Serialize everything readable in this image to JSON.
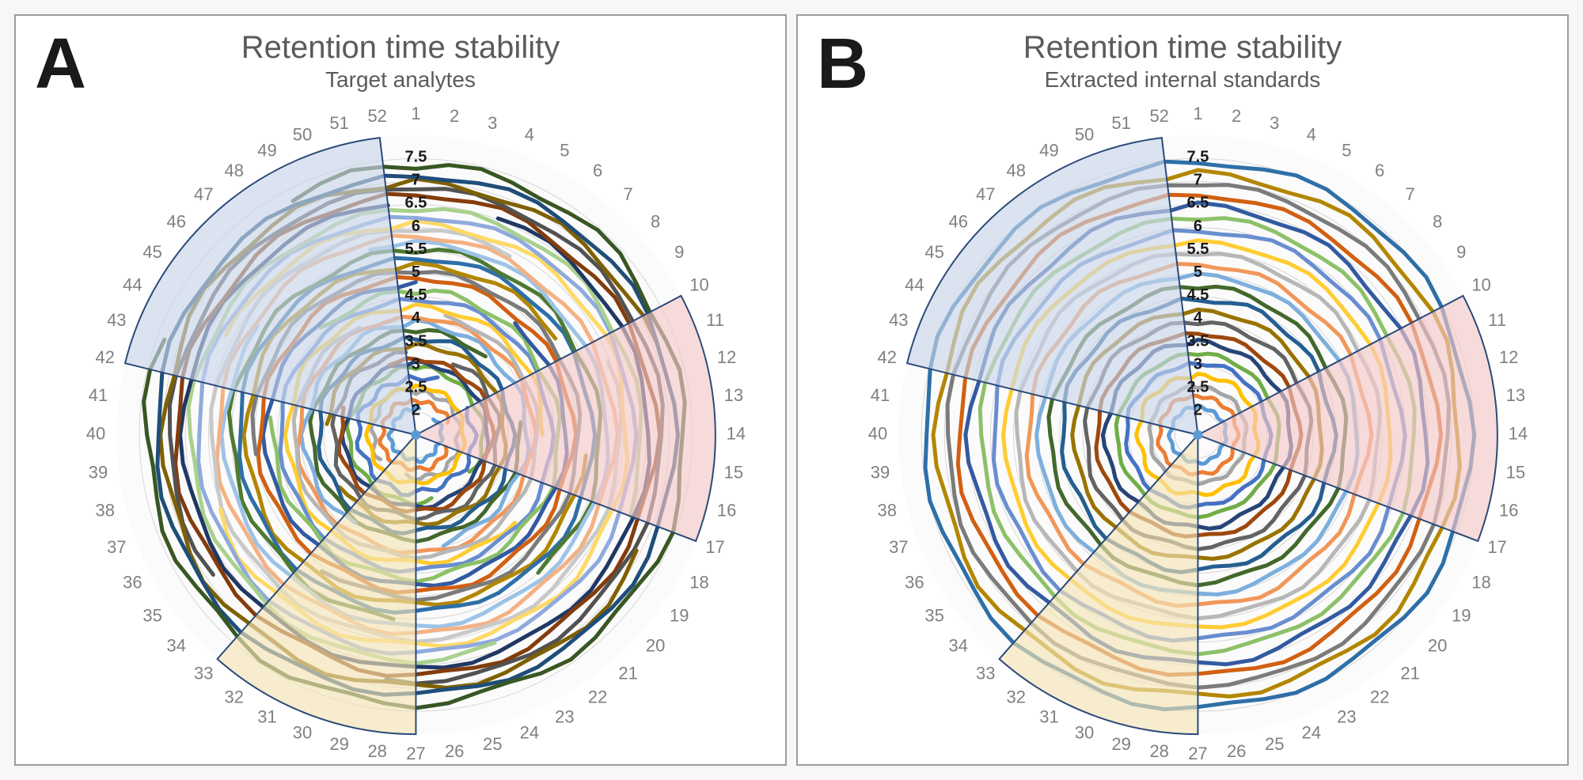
{
  "panelA": {
    "letter": "A",
    "title": "Retention time stability",
    "subtitle": "Target analytes"
  },
  "panelB": {
    "letter": "B",
    "title": "Retention time stability",
    "subtitle": "Extracted internal standards"
  },
  "chart": {
    "type": "polar-line",
    "angular_categories_n": 52,
    "angular_labels": [
      "1",
      "2",
      "3",
      "4",
      "5",
      "6",
      "7",
      "8",
      "9",
      "10",
      "11",
      "12",
      "13",
      "14",
      "15",
      "16",
      "17",
      "18",
      "19",
      "20",
      "21",
      "22",
      "23",
      "24",
      "25",
      "26",
      "27",
      "28",
      "29",
      "30",
      "31",
      "32",
      "33",
      "34",
      "35",
      "36",
      "37",
      "38",
      "39",
      "40",
      "41",
      "42",
      "43",
      "44",
      "45",
      "46",
      "47",
      "48",
      "49",
      "50",
      "51",
      "52"
    ],
    "angular_label_color": "#808080",
    "angular_label_fontsize": 22,
    "radial_ticks": [
      2,
      2.5,
      3,
      3.5,
      4,
      4.5,
      5,
      5.5,
      6,
      6.5,
      7,
      7.5
    ],
    "radial_tick_labels": [
      "2",
      "2.5",
      "3",
      "3.5",
      "4",
      "4.5",
      "5",
      "5.5",
      "6",
      "6.5",
      "7",
      "7.5"
    ],
    "radial_label_color": "#1a1a1a",
    "radial_label_fontsize": 20,
    "radial_label_fontweight": 700,
    "radial_min": 1.5,
    "radial_max": 8.0,
    "gridline_color": "#d6d6d6",
    "gridline_width": 1,
    "background_color": "#fbfbfb",
    "series_line_width": 5,
    "series_colors": [
      "#5b9bd5",
      "#ed7d31",
      "#a5a5a5",
      "#ffc000",
      "#4472c4",
      "#70ad47",
      "#264478",
      "#9e480e",
      "#636363",
      "#997300",
      "#255e91",
      "#43682b",
      "#7cafdd",
      "#f1975a",
      "#b7b7b7",
      "#ffcd33",
      "#698ed0",
      "#8cc168",
      "#335aa1",
      "#d26012",
      "#7b7b7b",
      "#b38600",
      "#2e6fa7",
      "#4e7932",
      "#9dc3e6",
      "#f4b183",
      "#c9c9c9",
      "#ffd966",
      "#8faadc",
      "#a9d18e",
      "#203864",
      "#833c0c",
      "#525252",
      "#7f6000",
      "#1f4e79",
      "#385723"
    ],
    "wedges": [
      {
        "from_cat": 10,
        "to_cat": 17,
        "fill": "#f4c7c7",
        "fill_opacity": 0.65,
        "stroke": "#2b4a7a",
        "r": 8.0
      },
      {
        "from_cat": 27,
        "to_cat": 33,
        "fill": "#f5e4b5",
        "fill_opacity": 0.65,
        "stroke": "#2b4a7a",
        "r": 8.0
      },
      {
        "from_cat": 42,
        "to_cat": 52,
        "fill": "#c9d6ea",
        "fill_opacity": 0.65,
        "stroke": "#2b4a7a",
        "r": 8.0
      }
    ],
    "A_series": [
      {
        "base": 2.05,
        "amp": 0.04,
        "gaps": [
          [
            3,
            7
          ]
        ]
      },
      {
        "base": 2.25,
        "amp": 0.05,
        "gaps": [
          [
            12,
            16
          ]
        ]
      },
      {
        "base": 2.45,
        "amp": 0.06,
        "gaps": [
          [
            30,
            34
          ],
          [
            48,
            51
          ]
        ]
      },
      {
        "base": 2.55,
        "amp": 0.04,
        "gaps": []
      },
      {
        "base": 2.75,
        "amp": 0.07,
        "gaps": [
          [
            5,
            9
          ]
        ]
      },
      {
        "base": 2.95,
        "amp": 0.05,
        "gaps": [
          [
            20,
            24
          ]
        ]
      },
      {
        "base": 3.05,
        "amp": 0.04,
        "gaps": []
      },
      {
        "base": 3.15,
        "amp": 0.05,
        "gaps": [
          [
            44,
            49
          ]
        ]
      },
      {
        "base": 3.3,
        "amp": 0.06,
        "gaps": [
          [
            1,
            4
          ]
        ]
      },
      {
        "base": 3.45,
        "amp": 0.05,
        "gaps": [
          [
            36,
            40
          ]
        ]
      },
      {
        "base": 3.6,
        "amp": 0.06,
        "gaps": []
      },
      {
        "base": 3.75,
        "amp": 0.05,
        "gaps": [
          [
            8,
            12
          ]
        ]
      },
      {
        "base": 3.9,
        "amp": 0.07,
        "gaps": [
          [
            26,
            31
          ]
        ]
      },
      {
        "base": 4.05,
        "amp": 0.05,
        "gaps": []
      },
      {
        "base": 4.15,
        "amp": 0.04,
        "gaps": [
          [
            50,
            2
          ]
        ]
      },
      {
        "base": 4.3,
        "amp": 0.06,
        "gaps": [
          [
            15,
            19
          ]
        ]
      },
      {
        "base": 4.45,
        "amp": 0.05,
        "gaps": []
      },
      {
        "base": 4.6,
        "amp": 0.07,
        "gaps": [
          [
            42,
            46
          ]
        ]
      },
      {
        "base": 4.75,
        "amp": 0.05,
        "gaps": [
          [
            2,
            6
          ]
        ]
      },
      {
        "base": 4.9,
        "amp": 0.06,
        "gaps": []
      },
      {
        "base": 5.05,
        "amp": 0.05,
        "gaps": [
          [
            33,
            38
          ]
        ]
      },
      {
        "base": 5.2,
        "amp": 0.06,
        "gaps": [
          [
            10,
            14
          ]
        ]
      },
      {
        "base": 5.35,
        "amp": 0.05,
        "gaps": []
      },
      {
        "base": 5.5,
        "amp": 0.07,
        "gaps": [
          [
            22,
            27
          ]
        ]
      },
      {
        "base": 5.65,
        "amp": 0.05,
        "gaps": [
          [
            46,
            50
          ]
        ]
      },
      {
        "base": 5.8,
        "amp": 0.06,
        "gaps": []
      },
      {
        "base": 5.95,
        "amp": 0.05,
        "gaps": [
          [
            6,
            10
          ]
        ]
      },
      {
        "base": 6.1,
        "amp": 0.07,
        "gaps": [
          [
            38,
            43
          ]
        ]
      },
      {
        "base": 6.25,
        "amp": 0.05,
        "gaps": []
      },
      {
        "base": 6.4,
        "amp": 0.06,
        "gaps": [
          [
            18,
            23
          ]
        ]
      },
      {
        "base": 6.55,
        "amp": 0.05,
        "gaps": [
          [
            1,
            3
          ]
        ]
      },
      {
        "base": 6.7,
        "amp": 0.07,
        "gaps": []
      },
      {
        "base": 6.85,
        "amp": 0.05,
        "gaps": [
          [
            29,
            34
          ]
        ]
      },
      {
        "base": 7.0,
        "amp": 0.08,
        "gaps": [
          [
            12,
            17
          ]
        ]
      },
      {
        "base": 7.15,
        "amp": 0.06,
        "gaps": []
      },
      {
        "base": 7.35,
        "amp": 0.09,
        "gaps": [
          [
            44,
            48
          ]
        ]
      }
    ],
    "B_series": [
      {
        "base": 2.1,
        "amp": 0.03,
        "gaps": []
      },
      {
        "base": 2.35,
        "amp": 0.04,
        "gaps": []
      },
      {
        "base": 2.55,
        "amp": 0.03,
        "gaps": []
      },
      {
        "base": 2.8,
        "amp": 0.05,
        "gaps": []
      },
      {
        "base": 3.05,
        "amp": 0.04,
        "gaps": []
      },
      {
        "base": 3.25,
        "amp": 0.03,
        "gaps": []
      },
      {
        "base": 3.5,
        "amp": 0.05,
        "gaps": []
      },
      {
        "base": 3.7,
        "amp": 0.04,
        "gaps": []
      },
      {
        "base": 3.95,
        "amp": 0.05,
        "gaps": []
      },
      {
        "base": 4.2,
        "amp": 0.04,
        "gaps": []
      },
      {
        "base": 4.45,
        "amp": 0.06,
        "gaps": []
      },
      {
        "base": 4.7,
        "amp": 0.05,
        "gaps": []
      },
      {
        "base": 4.95,
        "amp": 0.04,
        "gaps": []
      },
      {
        "base": 5.2,
        "amp": 0.06,
        "gaps": []
      },
      {
        "base": 5.45,
        "amp": 0.05,
        "gaps": []
      },
      {
        "base": 5.7,
        "amp": 0.04,
        "gaps": []
      },
      {
        "base": 5.95,
        "amp": 0.06,
        "gaps": []
      },
      {
        "base": 6.2,
        "amp": 0.05,
        "gaps": []
      },
      {
        "base": 6.45,
        "amp": 0.07,
        "gaps": []
      },
      {
        "base": 6.7,
        "amp": 0.06,
        "gaps": []
      },
      {
        "base": 6.95,
        "amp": 0.05,
        "gaps": []
      },
      {
        "base": 7.2,
        "amp": 0.08,
        "gaps": []
      },
      {
        "base": 7.45,
        "amp": 0.07,
        "gaps": []
      }
    ]
  }
}
